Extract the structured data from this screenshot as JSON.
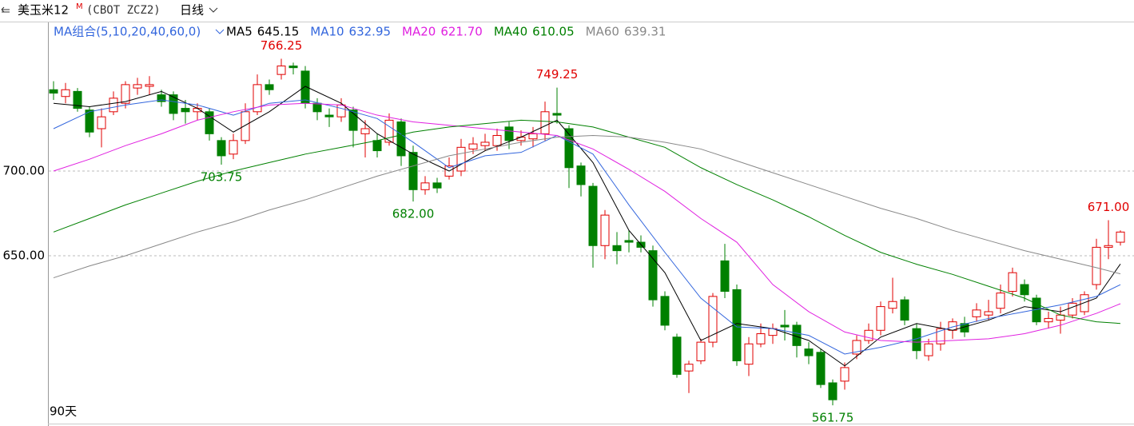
{
  "chart_data": {
    "type": "candlestick",
    "header": {
      "title": "美玉米12",
      "superscript": "M",
      "code": "(CBOT ZCZ2)",
      "period": "日线"
    },
    "ma_group_label": "MA组合(5,10,20,40,60,0)",
    "period_label": "90天",
    "ylim": [
      550.94,
      787.74
    ],
    "yticks": [
      {
        "value": 650,
        "label": "650.00"
      },
      {
        "value": 700,
        "label": "700.00"
      }
    ],
    "grid": true,
    "up_color": "#e00000",
    "down_color": "#008000",
    "open": [
      748,
      744,
      747,
      736,
      725,
      735,
      740,
      749,
      750,
      745,
      745,
      737,
      735,
      735,
      718,
      710,
      718,
      735,
      751,
      757,
      762,
      759,
      740,
      733,
      732,
      736,
      722,
      718,
      717,
      729,
      711,
      689,
      693,
      697,
      700,
      713,
      715,
      715,
      726,
      718,
      719,
      722,
      734,
      725,
      703,
      691,
      656,
      656,
      659,
      658,
      653,
      626,
      602,
      582,
      588,
      599,
      647,
      630,
      586,
      598,
      603,
      609,
      609,
      595,
      593,
      575,
      576,
      592,
      600,
      606,
      619,
      624,
      607,
      591,
      598,
      606,
      610,
      614,
      615,
      619,
      629,
      633,
      625,
      611,
      612,
      615,
      617,
      633,
      655,
      658
    ],
    "high": [
      753,
      752,
      749,
      738,
      737,
      747,
      753,
      755,
      756,
      748,
      747,
      742,
      740,
      737,
      720,
      722,
      740,
      757,
      754,
      766.25,
      764,
      762,
      743,
      737,
      743,
      738,
      730,
      722,
      734,
      731,
      715,
      697,
      696,
      708,
      719,
      720,
      722,
      725,
      729,
      724,
      726,
      741,
      749.25,
      727,
      705,
      693,
      677,
      664,
      665,
      662,
      656,
      629,
      604,
      588,
      601,
      628,
      657,
      633,
      602,
      610,
      610,
      618,
      611,
      599,
      595,
      577,
      587,
      603,
      610,
      623,
      637,
      626,
      610,
      601,
      611,
      613,
      614,
      622,
      624,
      633,
      643,
      636,
      627,
      617,
      620,
      625,
      629,
      660,
      671,
      665
    ],
    "low": [
      742,
      740,
      735,
      720,
      714,
      733,
      737,
      745,
      745,
      738,
      730,
      728,
      730,
      718,
      703.75,
      707,
      716,
      733,
      745,
      754,
      757,
      737,
      730,
      726,
      729,
      714,
      708,
      708,
      715,
      703,
      682,
      686,
      687,
      695,
      697,
      710,
      712,
      712,
      713,
      715,
      714,
      718,
      728,
      690,
      685,
      643,
      648,
      645,
      652,
      652,
      620,
      606,
      578,
      569,
      586,
      596,
      625,
      585,
      579,
      596,
      598,
      600,
      590,
      586,
      572,
      561.75,
      571,
      589,
      598,
      603,
      616,
      609,
      589,
      588,
      594,
      601,
      602,
      611,
      612,
      616,
      626,
      623,
      609,
      607,
      604,
      613,
      615,
      630,
      648,
      656
    ],
    "close": [
      746,
      748,
      737,
      723,
      732,
      743,
      751,
      751,
      751,
      741,
      734,
      735,
      737,
      722,
      709,
      718,
      735,
      751,
      748,
      762,
      761,
      740,
      735,
      732,
      739,
      724,
      725,
      712,
      730,
      709,
      689,
      693,
      690,
      703,
      714,
      716,
      717,
      721,
      718,
      720,
      722,
      735,
      733,
      702,
      692,
      656,
      674,
      653,
      658,
      655,
      624,
      609,
      580,
      586,
      599,
      626,
      629,
      588,
      598,
      604,
      607,
      608,
      597,
      591,
      574,
      565,
      584,
      600,
      606,
      620,
      623,
      612,
      594,
      598,
      607,
      611,
      605,
      618,
      617,
      628,
      640,
      627,
      611,
      613,
      615,
      622,
      627,
      655,
      656,
      664
    ],
    "ma_x": [
      0,
      3,
      6,
      9,
      12,
      15,
      18,
      21,
      24,
      27,
      30,
      33,
      36,
      39,
      42,
      45,
      48,
      51,
      54,
      57,
      60,
      63,
      66,
      69,
      72,
      75,
      78,
      81,
      84,
      87,
      89
    ],
    "ma_lines": [
      {
        "name": "MA5",
        "legend_value": "645.15",
        "color": "#000000",
        "values": [
          740,
          738,
          741,
          747,
          737,
          723,
          735,
          750,
          740,
          722,
          710,
          700,
          712,
          720,
          730,
          705,
          665,
          640,
          600,
          610,
          607,
          600,
          585,
          602,
          610,
          606,
          612,
          620,
          617,
          625,
          645.15
        ]
      },
      {
        "name": "MA10",
        "legend_value": "632.95",
        "color": "#3366dd",
        "values": [
          725,
          735,
          739,
          742,
          739,
          733,
          740,
          742,
          737,
          731,
          717,
          702,
          709,
          711,
          721,
          710,
          680,
          652,
          625,
          608,
          607,
          603,
          592,
          596,
          601,
          608,
          613,
          617,
          621,
          626,
          632.95
        ]
      },
      {
        "name": "MA20",
        "legend_value": "621.70",
        "color": "#e020e0",
        "values": [
          700,
          707,
          715,
          722,
          730,
          735,
          739,
          740,
          739,
          733,
          729,
          727,
          725,
          723,
          721,
          713,
          701,
          688,
          672,
          658,
          633,
          617,
          605,
          600,
          599,
          600,
          601,
          604,
          609,
          616,
          621.7
        ]
      },
      {
        "name": "MA40",
        "legend_value": "610.05",
        "color": "#008000",
        "values": [
          664,
          672,
          680,
          687,
          694,
          700,
          705,
          710,
          714,
          718,
          723,
          726,
          728,
          730,
          729,
          726,
          720,
          714,
          702,
          692,
          683,
          673,
          662,
          652,
          645,
          639,
          632,
          625,
          615,
          611,
          610.05
        ]
      },
      {
        "name": "MA60",
        "legend_value": "639.31",
        "color": "#888888",
        "values": [
          637,
          644,
          650,
          657,
          664,
          670,
          677,
          683,
          690,
          697,
          703,
          709,
          713,
          717,
          720,
          721,
          720,
          717,
          713,
          706,
          699,
          692,
          685,
          678,
          672,
          665,
          659,
          653,
          648,
          643,
          639.31
        ]
      }
    ],
    "annotations": [
      {
        "x": 19,
        "value": 766.25,
        "label": "766.25",
        "side": "high"
      },
      {
        "x": 42,
        "value": 749.25,
        "label": "749.25",
        "side": "high"
      },
      {
        "x": 14,
        "value": 703.75,
        "label": "703.75",
        "side": "low"
      },
      {
        "x": 30,
        "value": 682,
        "label": "682.00",
        "side": "low"
      },
      {
        "x": 65,
        "value": 561.75,
        "label": "561.75",
        "side": "low"
      },
      {
        "x": 88,
        "value": 671,
        "label": "671.00",
        "side": "high"
      }
    ]
  }
}
